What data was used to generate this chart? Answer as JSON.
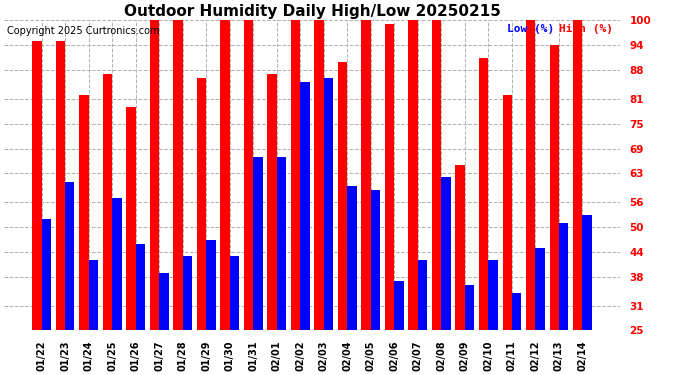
{
  "title": "Outdoor Humidity Daily High/Low 20250215",
  "copyright": "Copyright 2025 Curtronics.com",
  "legend_low": "Low (%)",
  "legend_high": "High (%)",
  "dates": [
    "01/22",
    "01/23",
    "01/24",
    "01/25",
    "01/26",
    "01/27",
    "01/28",
    "01/29",
    "01/30",
    "01/31",
    "02/01",
    "02/02",
    "02/03",
    "02/04",
    "02/05",
    "02/06",
    "02/07",
    "02/08",
    "02/09",
    "02/10",
    "02/11",
    "02/12",
    "02/13",
    "02/14"
  ],
  "high": [
    95,
    95,
    82,
    87,
    79,
    100,
    100,
    86,
    100,
    100,
    87,
    100,
    100,
    90,
    100,
    99,
    100,
    100,
    65,
    91,
    82,
    100,
    94,
    100
  ],
  "low": [
    52,
    61,
    42,
    57,
    46,
    39,
    43,
    47,
    43,
    67,
    67,
    85,
    86,
    60,
    59,
    37,
    42,
    62,
    36,
    42,
    34,
    45,
    51,
    53
  ],
  "high_color": "#ff0000",
  "low_color": "#0000ff",
  "bg_color": "#ffffff",
  "grid_color": "#b0b0b0",
  "yticks": [
    25,
    31,
    38,
    44,
    50,
    56,
    63,
    69,
    75,
    81,
    88,
    94,
    100
  ],
  "ymin": 25,
  "ymax": 100,
  "bar_width": 0.4,
  "title_fontsize": 11,
  "copyright_fontsize": 7,
  "legend_fontsize": 8,
  "tick_fontsize": 7.5,
  "xtick_fontsize": 7
}
